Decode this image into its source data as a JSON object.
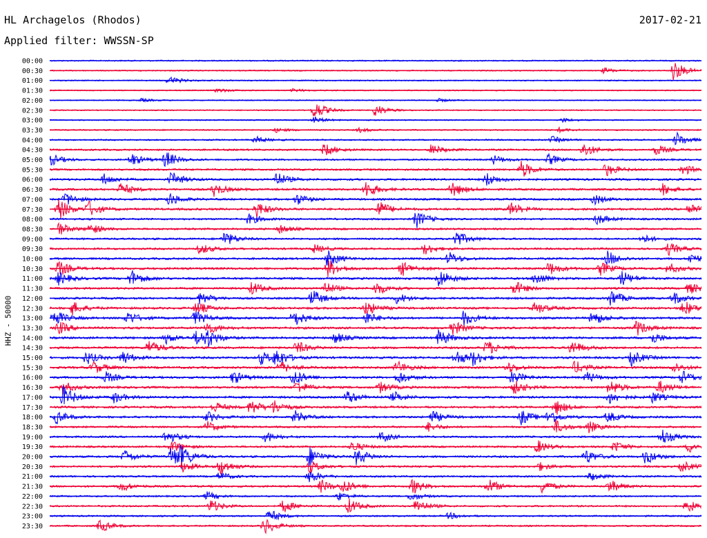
{
  "header": {
    "station": "HL Archagelos (Rhodos)",
    "date": "2017-02-21",
    "filter": "Applied filter: WWSSN-SP"
  },
  "colors": {
    "odd": "#0000ee",
    "even": "#ee0033"
  },
  "chart_data": {
    "type": "line",
    "title": "HL Archagelos (Rhodos)",
    "ylabel": "HHZ - 50000",
    "xlabel": "",
    "grid": false,
    "legend": "none",
    "series": [
      {
        "row_label": "00:00",
        "color": "blue",
        "activity": 0.15,
        "events": []
      },
      {
        "row_label": "00:30",
        "color": "red",
        "activity": 0.12,
        "events": [
          [
            875,
            0.25
          ],
          [
            975,
            1.0
          ]
        ]
      },
      {
        "row_label": "01:00",
        "color": "blue",
        "activity": 0.12,
        "events": [
          [
            245,
            0.4
          ]
        ]
      },
      {
        "row_label": "01:30",
        "color": "red",
        "activity": 0.1,
        "events": [
          [
            315,
            0.2
          ],
          [
            425,
            0.15
          ]
        ]
      },
      {
        "row_label": "02:00",
        "color": "blue",
        "activity": 0.08,
        "events": [
          [
            205,
            0.15
          ],
          [
            635,
            0.15
          ]
        ]
      },
      {
        "row_label": "02:30",
        "color": "red",
        "activity": 0.1,
        "events": [
          [
            455,
            0.9
          ],
          [
            543,
            0.6
          ]
        ]
      },
      {
        "row_label": "03:00",
        "color": "blue",
        "activity": 0.1,
        "events": [
          [
            455,
            0.3
          ],
          [
            815,
            0.2
          ]
        ]
      },
      {
        "row_label": "03:30",
        "color": "red",
        "activity": 0.15,
        "events": [
          [
            400,
            0.2
          ],
          [
            520,
            0.2
          ],
          [
            810,
            0.2
          ]
        ]
      },
      {
        "row_label": "04:00",
        "color": "blue",
        "activity": 0.2,
        "events": [
          [
            370,
            0.3
          ],
          [
            800,
            0.3
          ],
          [
            980,
            0.7
          ]
        ]
      },
      {
        "row_label": "04:30",
        "color": "red",
        "activity": 0.3,
        "events": [
          [
            470,
            0.6
          ],
          [
            625,
            0.5
          ],
          [
            845,
            0.7
          ],
          [
            950,
            0.5
          ]
        ]
      },
      {
        "row_label": "05:00",
        "color": "blue",
        "activity": 0.3,
        "events": [
          [
            75,
            0.5
          ],
          [
            190,
            0.6
          ],
          [
            240,
            0.8
          ],
          [
            715,
            0.4
          ],
          [
            795,
            0.5
          ]
        ]
      },
      {
        "row_label": "05:30",
        "color": "red",
        "activity": 0.35,
        "events": [
          [
            755,
            0.8
          ],
          [
            878,
            0.6
          ],
          [
            990,
            0.5
          ]
        ]
      },
      {
        "row_label": "06:00",
        "color": "blue",
        "activity": 0.4,
        "events": [
          [
            150,
            0.5
          ],
          [
            248,
            0.7
          ],
          [
            400,
            0.7
          ],
          [
            705,
            0.6
          ]
        ]
      },
      {
        "row_label": "06:30",
        "color": "red",
        "activity": 0.4,
        "events": [
          [
            175,
            0.6
          ],
          [
            310,
            0.6
          ],
          [
            530,
            0.8
          ],
          [
            655,
            0.7
          ],
          [
            960,
            0.5
          ]
        ]
      },
      {
        "row_label": "07:00",
        "color": "blue",
        "activity": 0.4,
        "events": [
          [
            95,
            0.6
          ],
          [
            245,
            0.6
          ],
          [
            430,
            0.5
          ],
          [
            860,
            0.5
          ]
        ]
      },
      {
        "row_label": "07:30",
        "color": "red",
        "activity": 0.45,
        "events": [
          [
            85,
            1.0
          ],
          [
            128,
            0.7
          ],
          [
            372,
            0.7
          ],
          [
            548,
            0.8
          ],
          [
            740,
            0.6
          ],
          [
            998,
            0.6
          ]
        ]
      },
      {
        "row_label": "08:00",
        "color": "blue",
        "activity": 0.35,
        "events": [
          [
            360,
            0.5
          ],
          [
            603,
            0.8
          ],
          [
            865,
            0.5
          ]
        ]
      },
      {
        "row_label": "08:30",
        "color": "red",
        "activity": 0.35,
        "events": [
          [
            85,
            0.6
          ],
          [
            130,
            0.5
          ],
          [
            405,
            0.4
          ]
        ]
      },
      {
        "row_label": "09:00",
        "color": "blue",
        "activity": 0.35,
        "events": [
          [
            325,
            0.7
          ],
          [
            660,
            0.8
          ],
          [
            930,
            0.4
          ]
        ]
      },
      {
        "row_label": "09:30",
        "color": "red",
        "activity": 0.35,
        "events": [
          [
            290,
            0.5
          ],
          [
            455,
            0.4
          ],
          [
            615,
            0.5
          ],
          [
            968,
            0.6
          ]
        ]
      },
      {
        "row_label": "10:00",
        "color": "blue",
        "activity": 0.4,
        "events": [
          [
            475,
            0.8
          ],
          [
            650,
            0.6
          ],
          [
            880,
            0.7
          ],
          [
            1000,
            0.5
          ]
        ]
      },
      {
        "row_label": "10:30",
        "color": "red",
        "activity": 0.45,
        "events": [
          [
            85,
            0.7
          ],
          [
            475,
            0.8
          ],
          [
            582,
            0.7
          ],
          [
            795,
            0.6
          ],
          [
            870,
            0.6
          ],
          [
            968,
            0.5
          ]
        ]
      },
      {
        "row_label": "11:00",
        "color": "blue",
        "activity": 0.45,
        "events": [
          [
            85,
            0.6
          ],
          [
            190,
            0.8
          ],
          [
            636,
            0.9
          ],
          [
            775,
            0.6
          ],
          [
            900,
            0.7
          ]
        ]
      },
      {
        "row_label": "11:30",
        "color": "red",
        "activity": 0.4,
        "events": [
          [
            365,
            0.6
          ],
          [
            470,
            0.6
          ],
          [
            545,
            0.6
          ],
          [
            745,
            0.7
          ],
          [
            998,
            0.5
          ]
        ]
      },
      {
        "row_label": "12:00",
        "color": "blue",
        "activity": 0.4,
        "events": [
          [
            290,
            0.6
          ],
          [
            452,
            0.8
          ],
          [
            575,
            0.5
          ],
          [
            885,
            0.8
          ],
          [
            975,
            0.6
          ]
        ]
      },
      {
        "row_label": "12:30",
        "color": "red",
        "activity": 0.45,
        "events": [
          [
            105,
            0.6
          ],
          [
            285,
            0.6
          ],
          [
            530,
            0.7
          ],
          [
            775,
            0.6
          ],
          [
            990,
            0.7
          ]
        ]
      },
      {
        "row_label": "13:00",
        "color": "blue",
        "activity": 0.45,
        "events": [
          [
            78,
            0.8
          ],
          [
            185,
            0.6
          ],
          [
            282,
            0.7
          ],
          [
            425,
            0.8
          ],
          [
            530,
            0.6
          ],
          [
            672,
            0.7
          ],
          [
            858,
            0.7
          ]
        ]
      },
      {
        "row_label": "13:30",
        "color": "red",
        "activity": 0.45,
        "events": [
          [
            85,
            0.6
          ],
          [
            300,
            0.6
          ],
          [
            655,
            0.7
          ],
          [
            922,
            0.7
          ]
        ]
      },
      {
        "row_label": "14:00",
        "color": "blue",
        "activity": 0.45,
        "events": [
          [
            240,
            0.5
          ],
          [
            285,
            0.7
          ],
          [
            300,
            0.7
          ],
          [
            485,
            0.5
          ],
          [
            636,
            0.8
          ],
          [
            945,
            0.5
          ]
        ]
      },
      {
        "row_label": "14:30",
        "color": "red",
        "activity": 0.45,
        "events": [
          [
            215,
            0.7
          ],
          [
            430,
            0.6
          ],
          [
            705,
            0.7
          ],
          [
            828,
            0.7
          ]
        ]
      },
      {
        "row_label": "15:00",
        "color": "blue",
        "activity": 0.45,
        "events": [
          [
            125,
            0.6
          ],
          [
            178,
            0.6
          ],
          [
            378,
            0.6
          ],
          [
            400,
            0.8
          ],
          [
            660,
            0.7
          ],
          [
            685,
            0.6
          ],
          [
            915,
            0.7
          ]
        ]
      },
      {
        "row_label": "15:30",
        "color": "red",
        "activity": 0.45,
        "events": [
          [
            135,
            0.6
          ],
          [
            405,
            0.6
          ],
          [
            575,
            0.6
          ],
          [
            735,
            0.5
          ],
          [
            833,
            0.6
          ],
          [
            975,
            0.5
          ]
        ]
      },
      {
        "row_label": "16:00",
        "color": "blue",
        "activity": 0.45,
        "events": [
          [
            153,
            0.5
          ],
          [
            338,
            0.6
          ],
          [
            425,
            0.8
          ],
          [
            577,
            0.6
          ],
          [
            742,
            0.6
          ],
          [
            850,
            0.5
          ],
          [
            988,
            0.6
          ]
        ]
      },
      {
        "row_label": "16:30",
        "color": "red",
        "activity": 0.45,
        "events": [
          [
            90,
            0.6
          ],
          [
            430,
            0.6
          ],
          [
            550,
            0.5
          ],
          [
            745,
            0.6
          ],
          [
            883,
            0.7
          ],
          [
            955,
            0.6
          ]
        ]
      },
      {
        "row_label": "17:00",
        "color": "blue",
        "activity": 0.45,
        "events": [
          [
            92,
            1.0
          ],
          [
            165,
            0.5
          ],
          [
            503,
            0.6
          ],
          [
            570,
            0.5
          ],
          [
            883,
            0.6
          ],
          [
            945,
            0.5
          ]
        ]
      },
      {
        "row_label": "17:30",
        "color": "red",
        "activity": 0.4,
        "events": [
          [
            310,
            0.5
          ],
          [
            363,
            0.7
          ],
          [
            397,
            0.6
          ],
          [
            805,
            0.7
          ]
        ]
      },
      {
        "row_label": "18:00",
        "color": "blue",
        "activity": 0.4,
        "events": [
          [
            82,
            0.6
          ],
          [
            300,
            0.5
          ],
          [
            427,
            0.6
          ],
          [
            625,
            0.6
          ],
          [
            755,
            0.7
          ],
          [
            795,
            0.7
          ],
          [
            880,
            0.5
          ]
        ]
      },
      {
        "row_label": "18:30",
        "color": "red",
        "activity": 0.35,
        "events": [
          [
            300,
            0.5
          ],
          [
            620,
            0.4
          ],
          [
            805,
            0.6
          ],
          [
            853,
            0.5
          ]
        ]
      },
      {
        "row_label": "19:00",
        "color": "blue",
        "activity": 0.35,
        "events": [
          [
            240,
            0.7
          ],
          [
            385,
            0.5
          ],
          [
            552,
            0.5
          ],
          [
            958,
            0.8
          ]
        ]
      },
      {
        "row_label": "19:30",
        "color": "red",
        "activity": 0.35,
        "events": [
          [
            248,
            0.6
          ],
          [
            510,
            0.5
          ],
          [
            778,
            0.6
          ],
          [
            890,
            0.5
          ],
          [
            998,
            0.5
          ]
        ]
      },
      {
        "row_label": "20:00",
        "color": "blue",
        "activity": 0.4,
        "events": [
          [
            180,
            0.6
          ],
          [
            248,
            1.0
          ],
          [
            262,
            0.8
          ],
          [
            448,
            0.9
          ],
          [
            517,
            0.8
          ],
          [
            848,
            0.7
          ],
          [
            935,
            0.7
          ]
        ]
      },
      {
        "row_label": "20:30",
        "color": "red",
        "activity": 0.35,
        "events": [
          [
            265,
            0.5
          ],
          [
            318,
            0.8
          ],
          [
            448,
            0.6
          ],
          [
            780,
            0.4
          ],
          [
            988,
            0.5
          ]
        ]
      },
      {
        "row_label": "21:00",
        "color": "blue",
        "activity": 0.3,
        "events": [
          [
            318,
            0.4
          ],
          [
            448,
            0.6
          ],
          [
            855,
            0.4
          ]
        ]
      },
      {
        "row_label": "21:30",
        "color": "red",
        "activity": 0.35,
        "events": [
          [
            175,
            0.5
          ],
          [
            465,
            0.6
          ],
          [
            497,
            0.6
          ],
          [
            598,
            0.7
          ],
          [
            707,
            0.7
          ],
          [
            785,
            0.6
          ],
          [
            883,
            0.6
          ]
        ]
      },
      {
        "row_label": "22:00",
        "color": "blue",
        "activity": 0.25,
        "events": [
          [
            300,
            0.4
          ],
          [
            490,
            0.4
          ],
          [
            595,
            0.4
          ]
        ]
      },
      {
        "row_label": "22:30",
        "color": "red",
        "activity": 0.3,
        "events": [
          [
            305,
            0.6
          ],
          [
            410,
            0.6
          ],
          [
            505,
            0.7
          ],
          [
            603,
            0.7
          ],
          [
            995,
            0.6
          ]
        ]
      },
      {
        "row_label": "23:00",
        "color": "blue",
        "activity": 0.25,
        "events": [
          [
            390,
            0.6
          ],
          [
            650,
            0.3
          ]
        ]
      },
      {
        "row_label": "23:30",
        "color": "red",
        "activity": 0.25,
        "events": [
          [
            145,
            0.6
          ],
          [
            383,
            0.8
          ]
        ]
      }
    ]
  }
}
